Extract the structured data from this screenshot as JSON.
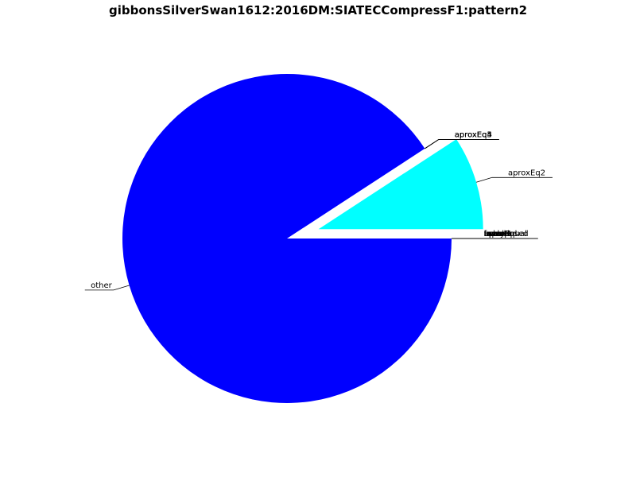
{
  "chart_data": {
    "type": "pie",
    "title": "gibbonsSilverSwan1612:2016DM:SIATECCompressF1:pattern2",
    "slices": [
      {
        "label": "aprox",
        "value": 0,
        "color": "#ff0000",
        "explode": false
      },
      {
        "label": "aprox4",
        "value": 0,
        "color": "#ff7f00",
        "explode": false
      },
      {
        "label": "aproxEq2",
        "value": 9.2,
        "color": "#00ffff",
        "explode": true
      },
      {
        "label": "aproxEq3",
        "value": 0,
        "color": "#7f00ff",
        "explode": false
      },
      {
        "label": "aproxEq4",
        "value": 0,
        "color": "#ff00ff",
        "explode": false
      },
      {
        "label": "aproxEq5",
        "value": 0,
        "color": "#007f00",
        "explode": false
      },
      {
        "label": "other",
        "value": 90.8,
        "color": "#0000ff",
        "explode": false
      },
      {
        "label": "equal",
        "value": 0,
        "color": "#ffff00",
        "explode": false
      },
      {
        "label": "fuzzyEqual",
        "value": 0,
        "color": "#00ff00",
        "explode": false
      },
      {
        "label": "subseq",
        "value": 0,
        "color": "#7f7f00",
        "explode": false
      },
      {
        "label": "transposed",
        "value": 0,
        "color": "#007f7f",
        "explode": false
      },
      {
        "label": "inverted",
        "value": 0,
        "color": "#7f007f",
        "explode": false
      },
      {
        "label": "scaled",
        "value": 0,
        "color": "#ff7f7f",
        "explode": false
      },
      {
        "label": "tonal",
        "value": 0,
        "color": "#7f7fff",
        "explode": false
      }
    ]
  }
}
